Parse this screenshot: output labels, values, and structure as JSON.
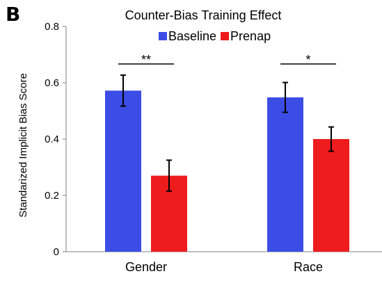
{
  "panel_label": "B",
  "chart_data": {
    "type": "bar",
    "title": "Counter-Bias Training Effect",
    "xlabel": "",
    "ylabel": "Standarized Implicit Bias Score",
    "ylim": [
      0,
      0.8
    ],
    "yticks": [
      "0",
      "0.2",
      "0.4",
      "0.6",
      "0.8"
    ],
    "grid": false,
    "legend_placement": "top-center",
    "categories": [
      "Gender",
      "Race"
    ],
    "series": [
      {
        "name": "Baseline",
        "color": "#3c4de6",
        "values": [
          0.572,
          0.548
        ],
        "errors": [
          0.055,
          0.053
        ]
      },
      {
        "name": "Prenap",
        "color": "#ee1c1c",
        "values": [
          0.27,
          0.4
        ],
        "errors": [
          0.055,
          0.043
        ]
      }
    ],
    "significance": [
      {
        "category": "Gender",
        "marker": "**"
      },
      {
        "category": "Race",
        "marker": "*"
      }
    ]
  }
}
